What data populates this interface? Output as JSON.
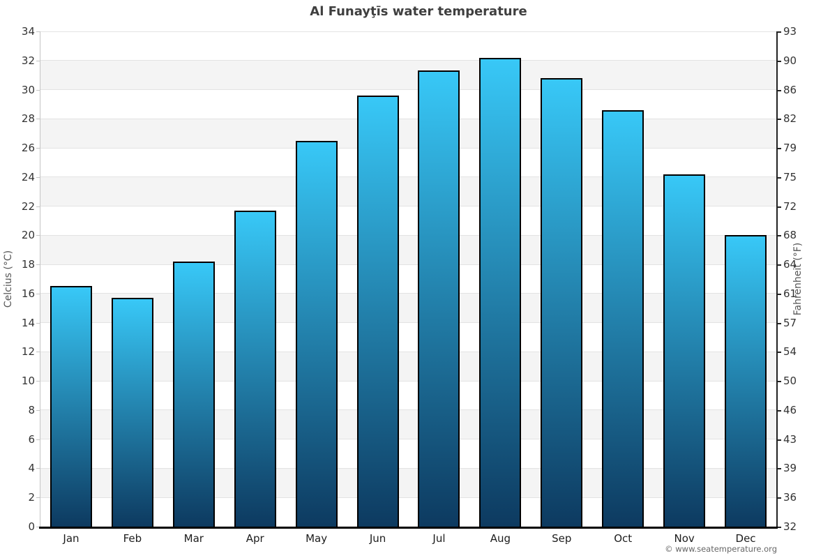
{
  "title": "Al Funayţīs water temperature",
  "y_axis_left": {
    "label": "Celcius (°C)",
    "ticks": [
      34,
      32,
      30,
      28,
      26,
      24,
      22,
      20,
      18,
      16,
      14,
      12,
      10,
      8,
      6,
      4,
      2,
      0
    ]
  },
  "y_axis_right": {
    "label": "Fahrenheit (°F)",
    "ticks": [
      93,
      90,
      86,
      82,
      79,
      75,
      72,
      68,
      64,
      61,
      57,
      54,
      50,
      46,
      43,
      39,
      36,
      32
    ]
  },
  "chart_data": {
    "type": "bar",
    "title": "Al Funayţīs water temperature",
    "categories": [
      "Jan",
      "Feb",
      "Mar",
      "Apr",
      "May",
      "Jun",
      "Jul",
      "Aug",
      "Sep",
      "Oct",
      "Nov",
      "Dec"
    ],
    "values": [
      16.5,
      15.7,
      18.2,
      21.7,
      26.5,
      29.6,
      31.3,
      32.2,
      30.8,
      28.6,
      24.2,
      20.0
    ],
    "unit": "°C",
    "xlabel": "",
    "ylabel_left": "Celcius (°C)",
    "ylabel_right": "Fahrenheit (°F)",
    "ylim": [
      0,
      34
    ],
    "y_tick_step": 2,
    "grid": "horizontal-bands-alternating",
    "legend": "none"
  },
  "footer": {
    "copyright": "© www.seatemperature.org"
  },
  "colors": {
    "bar_gradient_top": "#38c8f7",
    "bar_gradient_bottom": "#0d3a60",
    "bar_border": "#000000",
    "band_gray": "#f4f4f4",
    "gridline": "#e3e3e3",
    "axis_left_line": "#c4c4c4",
    "axis_right_line": "#222222",
    "baseline": "#000000",
    "title_text": "#3f3f3f",
    "tick_text": "#333333",
    "axis_label_text": "#555555",
    "month_text": "#1c1c1c",
    "copyright_text": "#666666"
  }
}
